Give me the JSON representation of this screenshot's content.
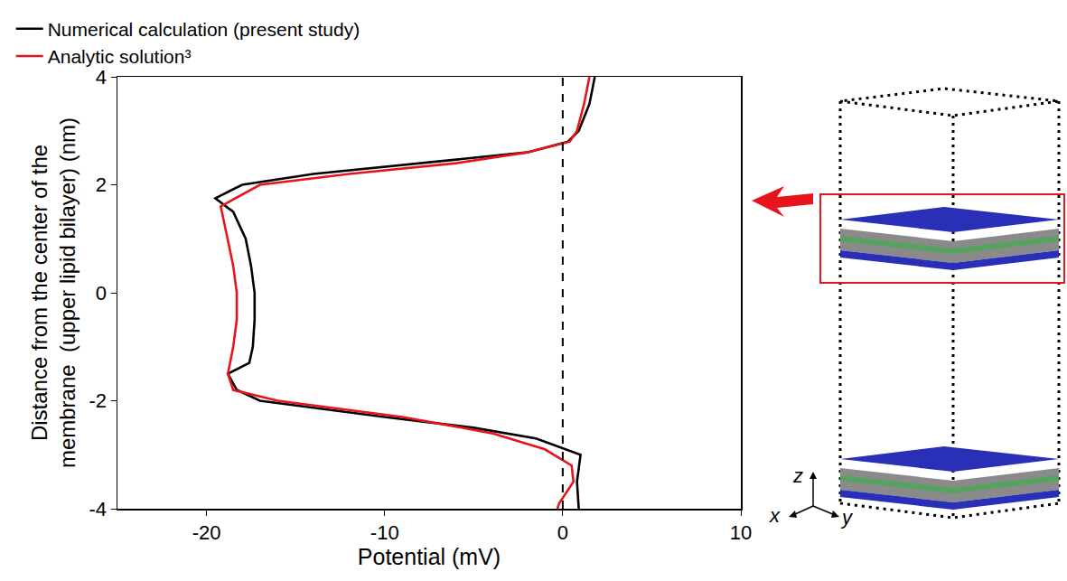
{
  "chart_data": {
    "type": "line",
    "x_label": "Potential (mV)",
    "y_label": "Distance from the center of the membrane  (upper lipid bilayer) (nm)",
    "xlim": [
      -25,
      10
    ],
    "xticks": [
      -20,
      -10,
      0,
      10
    ],
    "ylim": [
      -4,
      4
    ],
    "yticks": [
      -4,
      -2,
      0,
      2,
      4
    ],
    "legend": "top left",
    "grid": false,
    "vline": {
      "x": 0,
      "line_style": "dashed",
      "color": "#000000"
    },
    "series": [
      {
        "name": "Numerical calculation (present study)",
        "color": "#000000",
        "line_style": "solid",
        "x": [
          1.8,
          1.5,
          0.9,
          0.3,
          -2,
          -8,
          -14,
          -18,
          -19.5,
          -18.5,
          -17.8,
          -17.5,
          -17.3,
          -17.3,
          -17.4,
          -17.6,
          -18.8,
          -18.3,
          -17,
          -10,
          -5,
          -1.5,
          1.0,
          0.8,
          0.9
        ],
        "y": [
          4,
          3.5,
          3.0,
          2.8,
          2.6,
          2.4,
          2.2,
          2.0,
          1.75,
          1.5,
          1.0,
          0.5,
          0,
          -0.5,
          -1.0,
          -1.3,
          -1.5,
          -1.8,
          -2.0,
          -2.3,
          -2.5,
          -2.7,
          -3.0,
          -3.5,
          -4
        ]
      },
      {
        "name": "Analytic solution³",
        "color": "#e8141b",
        "line_style": "solid",
        "x": [
          1.5,
          1.2,
          0.8,
          0.4,
          -2,
          -6,
          -12,
          -17,
          -19.2,
          -18.8,
          -18.5,
          -18.3,
          -18.3,
          -18.5,
          -18.8,
          -18.5,
          -16,
          -9,
          -4,
          -1,
          0.5,
          0.6,
          -0.2,
          -0.3
        ],
        "y": [
          4,
          3.5,
          3.0,
          2.8,
          2.6,
          2.4,
          2.2,
          2.0,
          1.6,
          1.0,
          0.5,
          0,
          -0.5,
          -1.0,
          -1.5,
          -1.8,
          -2.0,
          -2.3,
          -2.6,
          -2.9,
          -3.2,
          -3.5,
          -3.9,
          -4
        ]
      }
    ],
    "diagram": {
      "axis_labels": [
        "x",
        "y",
        "z"
      ]
    }
  }
}
